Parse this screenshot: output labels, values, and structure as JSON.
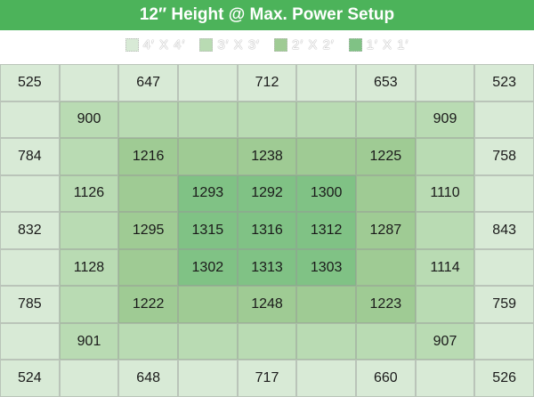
{
  "chart_data": {
    "type": "heatmap",
    "title": "12″ Height @ Max. Power Setup",
    "legend": [
      {
        "label": "4′ X 4′",
        "color": "#d8ead6"
      },
      {
        "label": "3′ X 3′",
        "color": "#b9dbb3"
      },
      {
        "label": "2′ X 2′",
        "color": "#9fcb94"
      },
      {
        "label": "1′ X 1′",
        "color": "#80c285"
      }
    ],
    "grid": [
      [
        "525",
        "",
        "647",
        "",
        "712",
        "",
        "653",
        "",
        "523"
      ],
      [
        "",
        "900",
        "",
        "",
        "",
        "",
        "",
        "909",
        ""
      ],
      [
        "784",
        "",
        "1216",
        "",
        "1238",
        "",
        "1225",
        "",
        "758"
      ],
      [
        "",
        "1126",
        "",
        "1293",
        "1292",
        "1300",
        "",
        "1110",
        ""
      ],
      [
        "832",
        "",
        "1295",
        "1315",
        "1316",
        "1312",
        "1287",
        "",
        "843"
      ],
      [
        "",
        "1128",
        "",
        "1302",
        "1313",
        "1303",
        "",
        "1114",
        ""
      ],
      [
        "785",
        "",
        "1222",
        "",
        "1248",
        "",
        "1223",
        "",
        "759"
      ],
      [
        "",
        "901",
        "",
        "",
        "",
        "",
        "",
        "907",
        ""
      ],
      [
        "524",
        "",
        "648",
        "",
        "717",
        "",
        "660",
        "",
        "526"
      ]
    ]
  },
  "colors": {
    "title_bg": "#4cb35a"
  }
}
